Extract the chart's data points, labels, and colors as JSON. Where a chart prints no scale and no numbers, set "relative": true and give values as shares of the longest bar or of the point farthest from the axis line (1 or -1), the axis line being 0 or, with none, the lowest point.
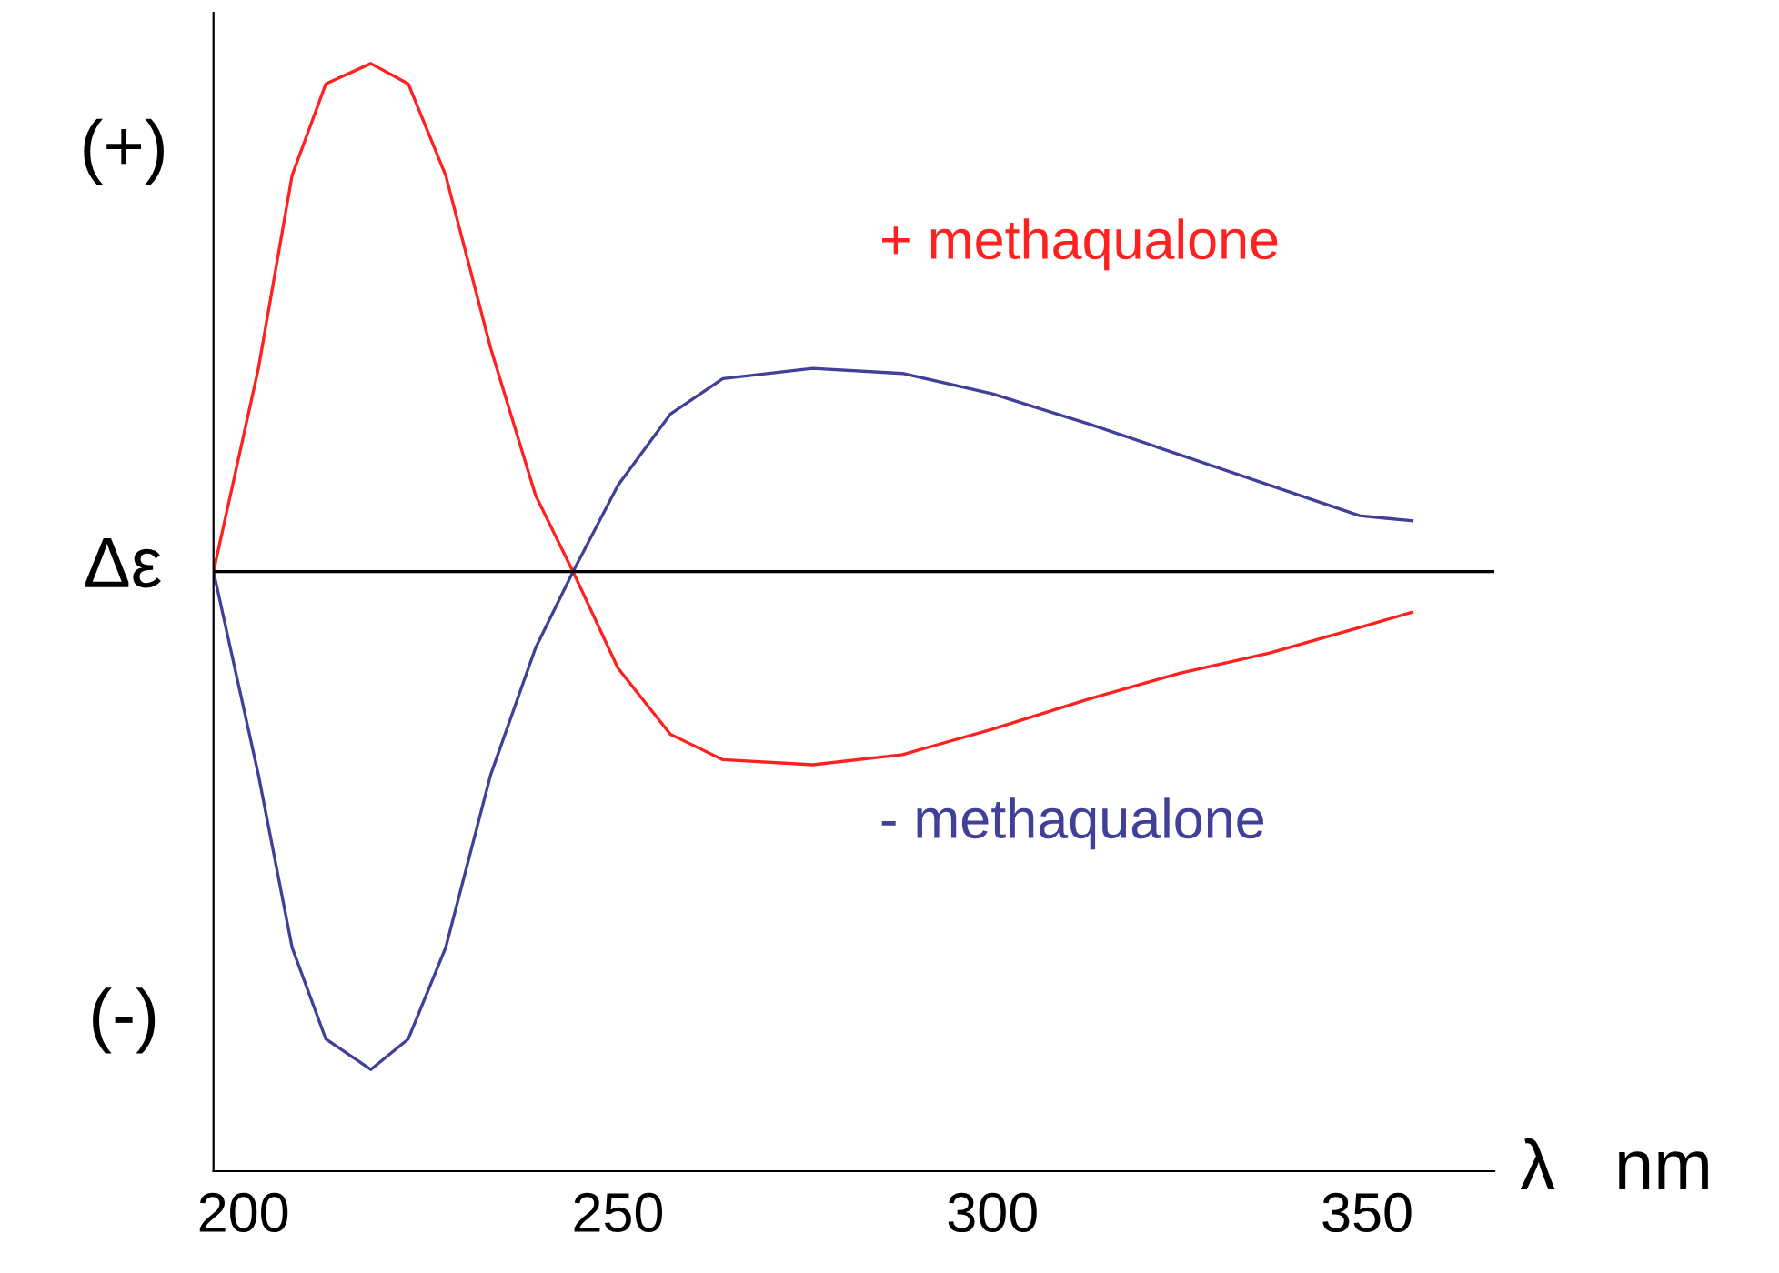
{
  "chart_data": {
    "type": "line",
    "relative": true,
    "ylabel": "Δε",
    "xlabel": "λ   nm",
    "x": [
      196,
      202,
      206.5,
      211,
      217,
      222,
      227,
      233,
      239,
      244,
      250,
      257,
      264,
      276,
      288,
      300,
      313,
      325,
      337,
      349,
      356
    ],
    "series": [
      {
        "name": "+ methaqualone",
        "color": "#ff2020",
        "values": [
          0,
          0.4,
          0.78,
          0.96,
          1.0,
          0.96,
          0.78,
          0.44,
          0.15,
          0,
          -0.19,
          -0.32,
          -0.37,
          -0.38,
          -0.36,
          -0.31,
          -0.25,
          -0.2,
          -0.16,
          -0.11,
          -0.08
        ]
      },
      {
        "name": "- methaqualone",
        "color": "#404098",
        "values": [
          0,
          -0.4,
          -0.74,
          -0.92,
          -0.98,
          -0.92,
          -0.74,
          -0.4,
          -0.15,
          0,
          0.17,
          0.31,
          0.38,
          0.4,
          0.39,
          0.35,
          0.29,
          0.23,
          0.17,
          0.11,
          0.1
        ]
      }
    ],
    "xlim": [
      196,
      367
    ],
    "xticks": [
      200,
      250,
      300,
      350
    ],
    "ref_lines": [
      {
        "axis": "y",
        "value": 0,
        "color": "#000000"
      }
    ],
    "annotations": [
      "(+)",
      "(-)"
    ],
    "grid": false,
    "legend": false,
    "marker": "none",
    "line_style": "solid"
  }
}
